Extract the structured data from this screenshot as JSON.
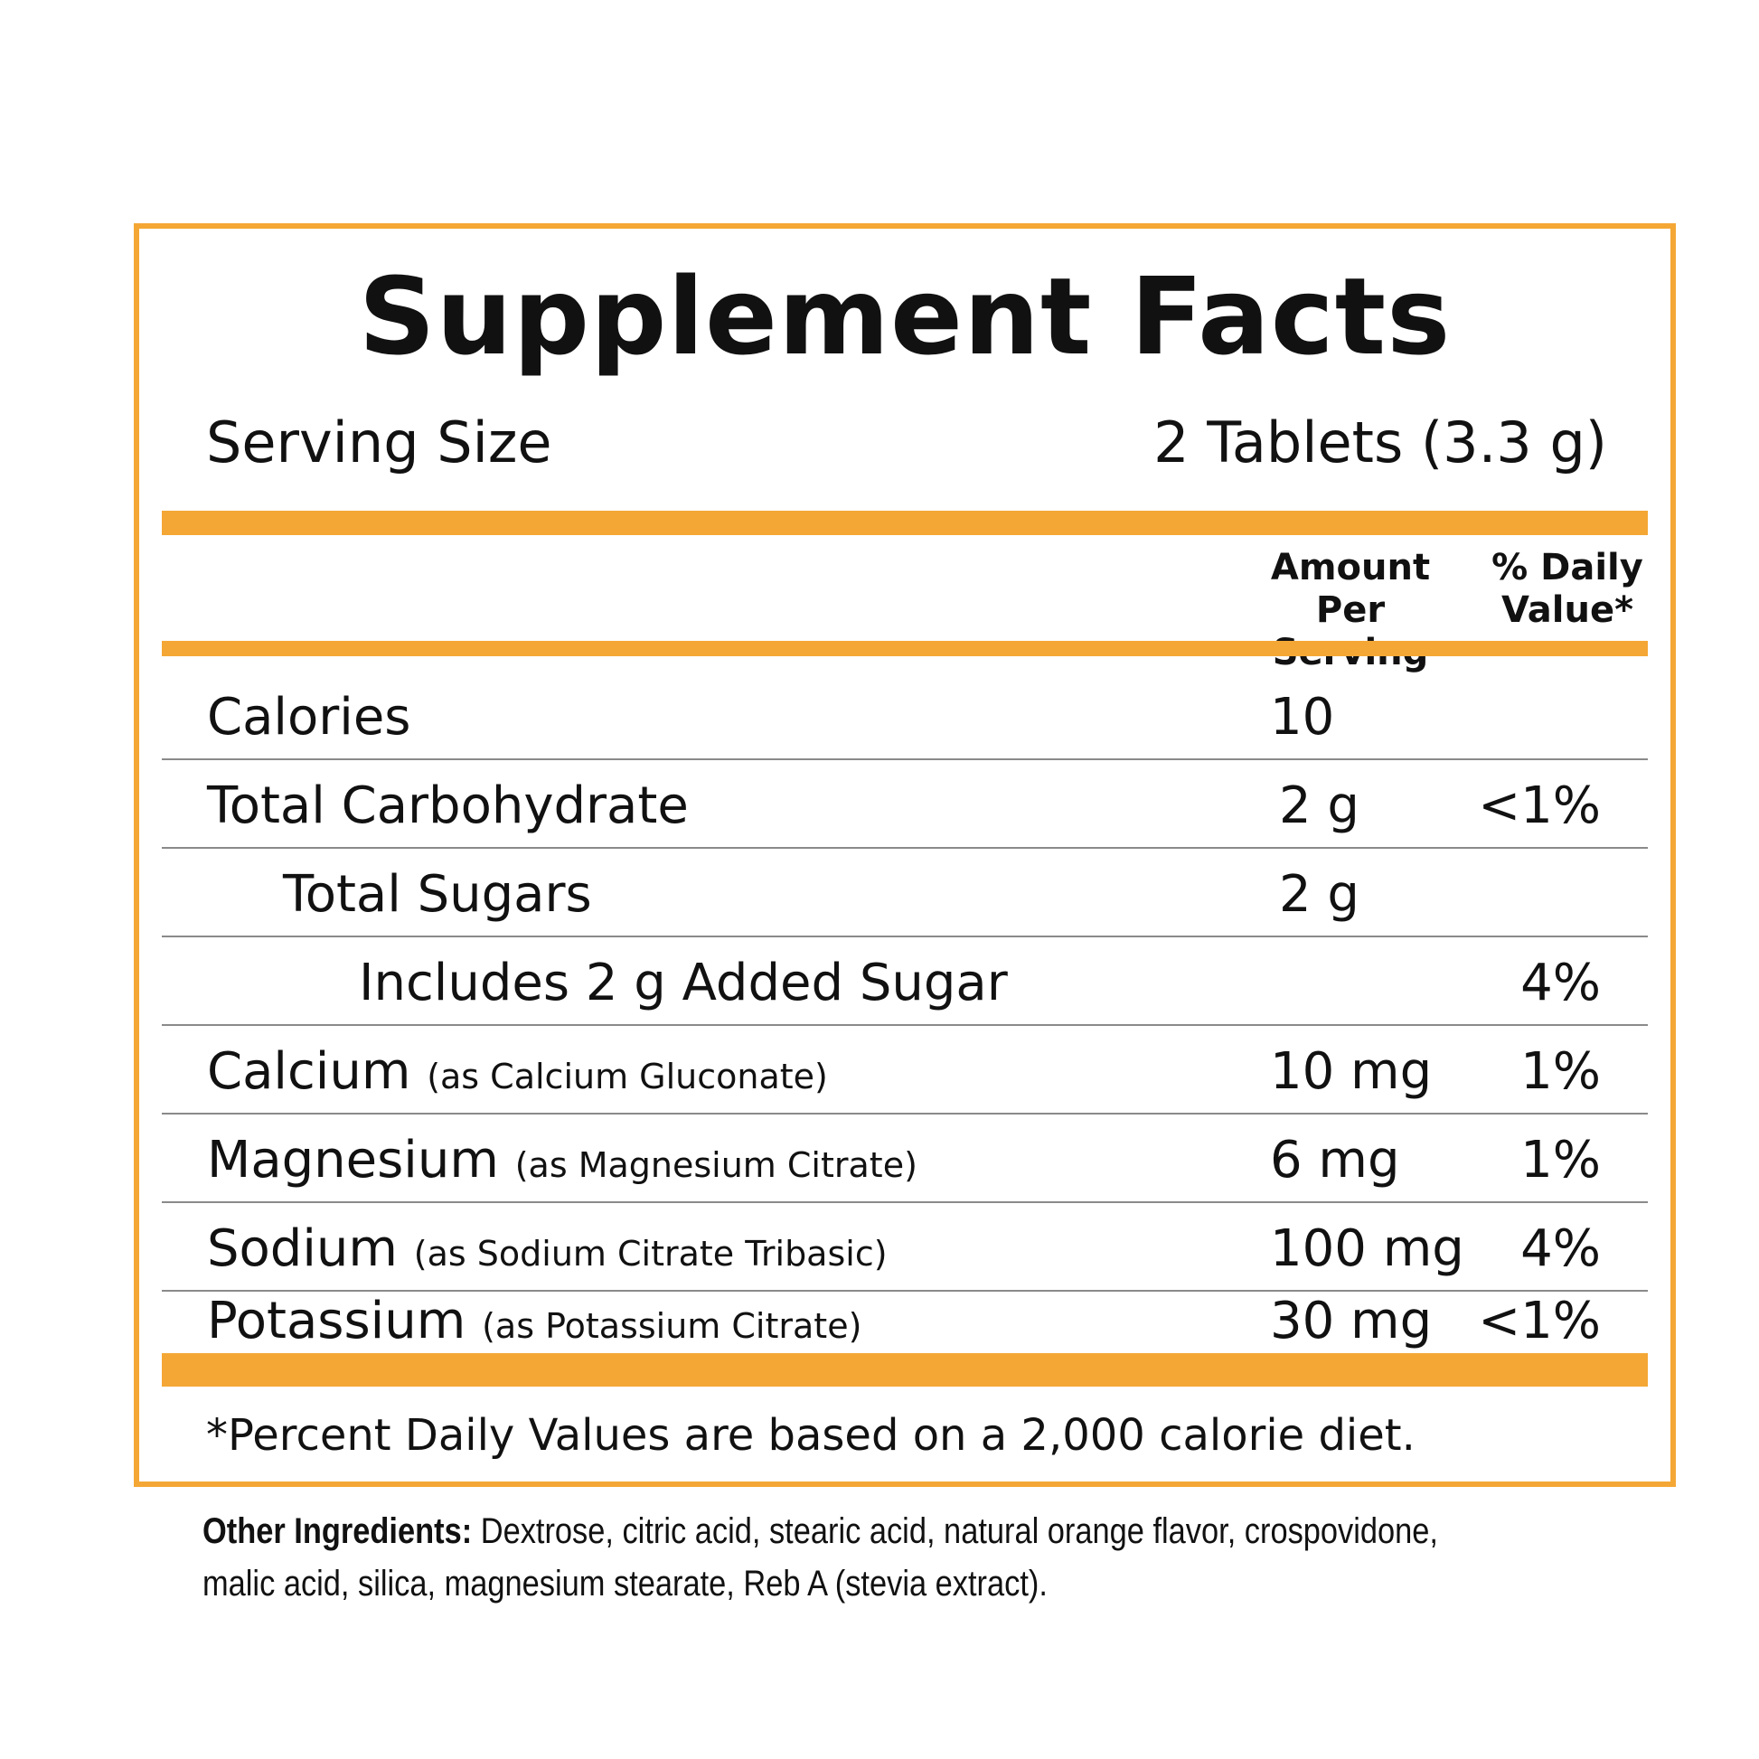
{
  "title": "Supplement Facts",
  "serving": {
    "label": "Serving Size",
    "value": "2 Tablets (3.3 g)"
  },
  "header": {
    "amount_line1": "Amount",
    "amount_line2": "Per Serving",
    "dv_line1": "% Daily",
    "dv_line2": "Value*"
  },
  "rows": [
    {
      "name": "Calories",
      "sub": "",
      "amount": "10",
      "dv": ""
    },
    {
      "name": "Total Carbohydrate",
      "sub": "",
      "amount": "2 g",
      "dv": "<1%"
    },
    {
      "name": "Total Sugars",
      "sub": "",
      "amount": "2 g",
      "dv": ""
    },
    {
      "name": "Includes 2 g Added Sugar",
      "sub": "",
      "amount": "",
      "dv": "4%"
    },
    {
      "name": "Calcium",
      "sub": "(as Calcium Gluconate)",
      "amount": "10 mg",
      "dv": "1%"
    },
    {
      "name": "Magnesium",
      "sub": "(as Magnesium Citrate)",
      "amount": "6 mg",
      "dv": "1%"
    },
    {
      "name": "Sodium",
      "sub": "(as Sodium Citrate Tribasic)",
      "amount": "100 mg",
      "dv": "4%"
    },
    {
      "name": "Potassium",
      "sub": "(as Potassium Citrate)",
      "amount": "30 mg",
      "dv": "<1%"
    }
  ],
  "footnote": "*Percent Daily Values are based on a 2,000 calorie diet.",
  "other_ingredients": {
    "label": "Other Ingredients:",
    "text": " Dextrose, citric acid, stearic acid, natural orange flavor, crospovidone, malic acid, silica, magnesium stearate, Reb A (stevia extract)."
  },
  "colors": {
    "accent": "#f4a735",
    "text": "#111111",
    "rule": "#8a8a8a"
  }
}
